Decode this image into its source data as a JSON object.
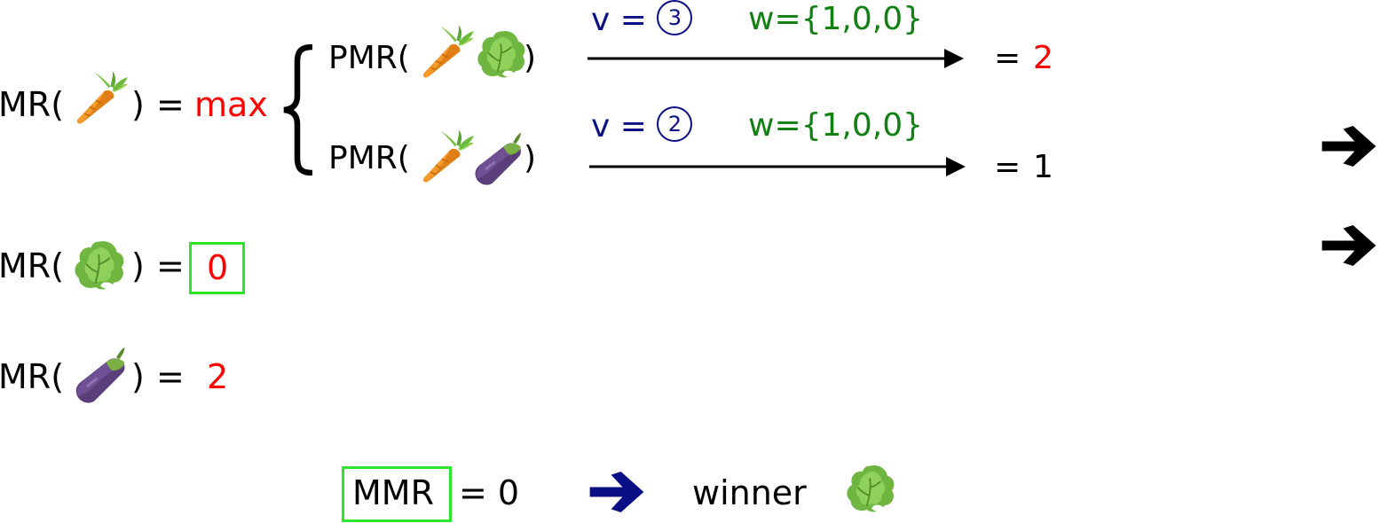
{
  "rows": {
    "carrot": {
      "prefix": "MR(",
      "suffix": ")",
      "eq": "=",
      "value": "max"
    },
    "lettuce": {
      "prefix": "MR(",
      "suffix": ")",
      "eq": "=",
      "value": "0"
    },
    "eggplant": {
      "prefix": "MR(",
      "suffix": ")",
      "eq": "=",
      "value": "2"
    }
  },
  "pairs": [
    {
      "prefix": "PMR(",
      "suffix": ")",
      "v_label": "v =",
      "v_value": "3",
      "w_label": "w={1,0,0}",
      "result_eq": "=",
      "result_value": "2",
      "result_color": "#ff0000"
    },
    {
      "prefix": "PMR(",
      "suffix": ")",
      "v_label": "v =",
      "v_value": "2",
      "w_label": "w={1,0,0}",
      "result_eq": "=",
      "result_value": "1",
      "result_color": "#000000"
    }
  ],
  "summary": {
    "mmr_label": "MMR",
    "mmr_eq": "= 0",
    "winner_label": "winner"
  },
  "icons": {
    "carrot": "carrot-icon",
    "lettuce": "lettuce-icon",
    "eggplant": "eggplant-icon",
    "arrow": "arrow-right-icon"
  },
  "colors": {
    "highlight": "#ff0000",
    "v_color": "#0a0f86",
    "w_color": "#138013",
    "box_border": "#2ee52e",
    "summary_arrow": "#0a0f86"
  }
}
